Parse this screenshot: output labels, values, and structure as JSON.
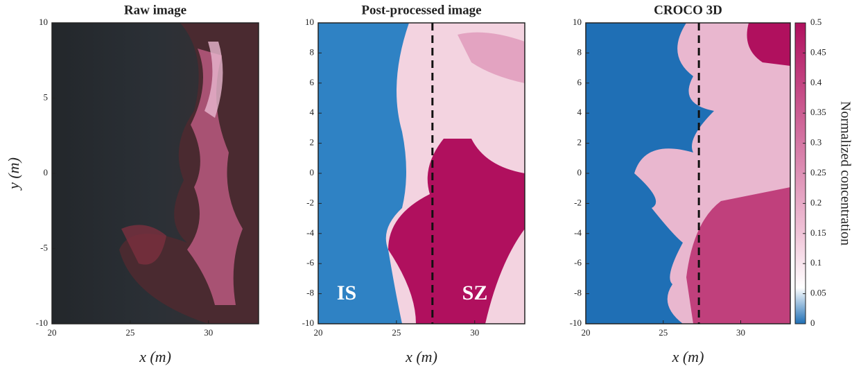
{
  "chart_data": [
    {
      "type": "image",
      "title": "Raw image",
      "xlabel": "x (m)",
      "ylabel": "y (m)",
      "xlim": [
        20,
        33.2
      ],
      "ylim": [
        -10,
        10
      ],
      "xticks": [
        20,
        25,
        30
      ],
      "yticks": [
        -10,
        -5,
        0,
        5,
        10
      ]
    },
    {
      "type": "image",
      "title": "Post-processed image",
      "xlabel": "x (m)",
      "xlim": [
        20,
        33.2
      ],
      "ylim": [
        -10,
        10
      ],
      "xticks": [
        20,
        25,
        30
      ],
      "yticks": [
        -10,
        -8,
        -6,
        -4,
        -2,
        0,
        2,
        4,
        6,
        8,
        10
      ],
      "dashed_line_x": 27.3,
      "annotations": [
        "IS",
        "SZ"
      ]
    },
    {
      "type": "image",
      "title": "CROCO 3D",
      "xlabel": "x (m)",
      "xlim": [
        20,
        33.2
      ],
      "ylim": [
        -10,
        10
      ],
      "xticks": [
        20,
        25,
        30
      ],
      "yticks": [
        -10,
        -8,
        -6,
        -4,
        -2,
        0,
        2,
        4,
        6,
        8,
        10
      ],
      "dashed_line_x": 27.3,
      "colorbar": {
        "label": "Normalized concentration",
        "lim": [
          0,
          0.5
        ],
        "ticks": [
          0,
          0.05,
          0.1,
          0.15,
          0.2,
          0.25,
          0.3,
          0.35,
          0.4,
          0.45,
          0.5
        ],
        "colors": [
          "#1f6fb5",
          "#ffffff",
          "#f0c4d8",
          "#b0105e"
        ]
      }
    }
  ]
}
